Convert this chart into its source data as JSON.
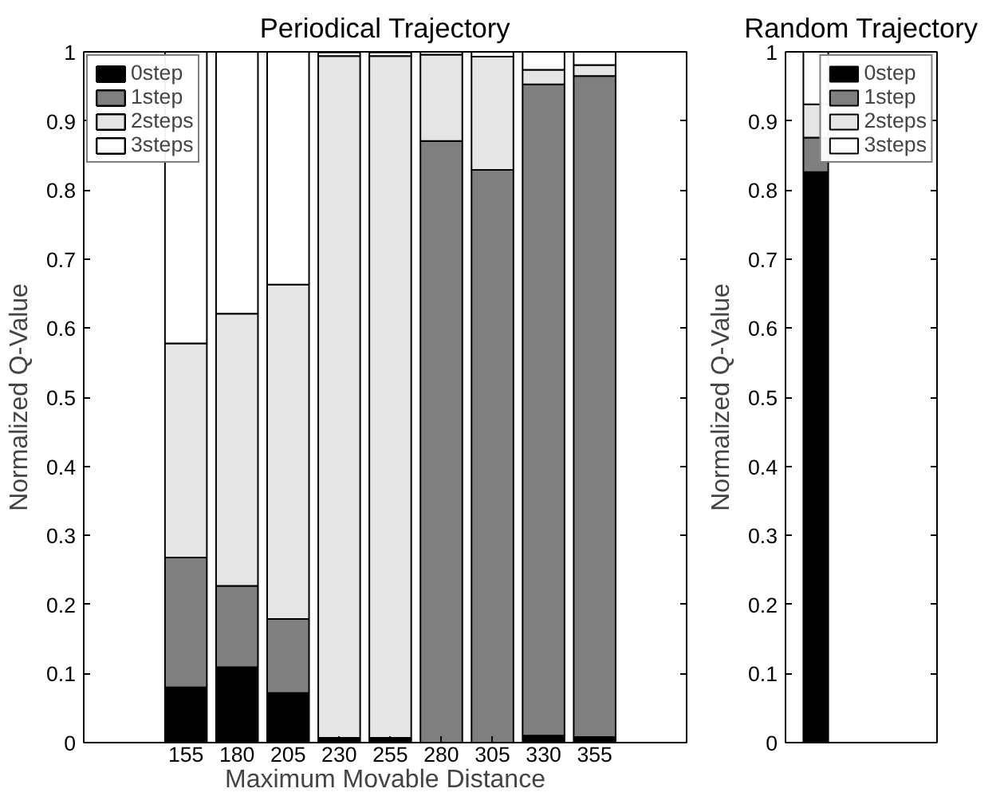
{
  "chart_data": [
    {
      "type": "bar",
      "stacked": true,
      "title": "Periodical Trajectory",
      "xlabel": "Maximum Movable Distance",
      "ylabel": "Normalized Q-Value",
      "x": [
        155,
        180,
        205,
        230,
        255,
        280,
        305,
        330,
        355
      ],
      "xlim": [
        105,
        400
      ],
      "xticks": [
        155,
        180,
        205,
        230,
        255,
        280,
        305,
        330,
        355
      ],
      "ylim": [
        0,
        1
      ],
      "yticks": [
        0,
        0.1,
        0.2,
        0.3,
        0.4,
        0.5,
        0.6,
        0.7,
        0.8,
        0.9,
        1
      ],
      "legend": "top left",
      "grid": false,
      "series": [
        {
          "name": "0step",
          "color": "#000000",
          "values": [
            0.08,
            0.109,
            0.072,
            0.007,
            0.007,
            null,
            null,
            0.01,
            0.008
          ]
        },
        {
          "name": "1step",
          "color": "#7f7f7f",
          "values": [
            0.188,
            0.118,
            0.107,
            null,
            null,
            0.871,
            0.829,
            0.943,
            0.957
          ]
        },
        {
          "name": "2steps",
          "color": "#e5e5e5",
          "values": [
            0.31,
            0.394,
            0.484,
            0.987,
            0.987,
            0.125,
            0.164,
            0.021,
            0.016
          ]
        },
        {
          "name": "3steps",
          "color": "#ffffff",
          "values": [
            0.422,
            0.379,
            0.337,
            0.005,
            0.005,
            0.004,
            0.007,
            0.026,
            0.019
          ]
        }
      ]
    },
    {
      "type": "bar",
      "stacked": true,
      "title": "Random Trajectory",
      "ylabel": "Normalized Q-Value",
      "categories": [
        null
      ],
      "ylim": [
        0,
        1
      ],
      "yticks": [
        0,
        0.1,
        0.2,
        0.3,
        0.4,
        0.5,
        0.6,
        0.7,
        0.8,
        0.9,
        1
      ],
      "legend": "top right",
      "grid": false,
      "tick_labels": "y",
      "series": [
        {
          "name": "0step",
          "color": "#000000",
          "values": [
            0.826
          ]
        },
        {
          "name": "1step",
          "color": "#7f7f7f",
          "values": [
            0.05
          ]
        },
        {
          "name": "2steps",
          "color": "#e5e5e5",
          "values": [
            0.048
          ]
        },
        {
          "name": "3steps",
          "color": "#ffffff",
          "values": [
            0.076
          ]
        }
      ]
    }
  ]
}
